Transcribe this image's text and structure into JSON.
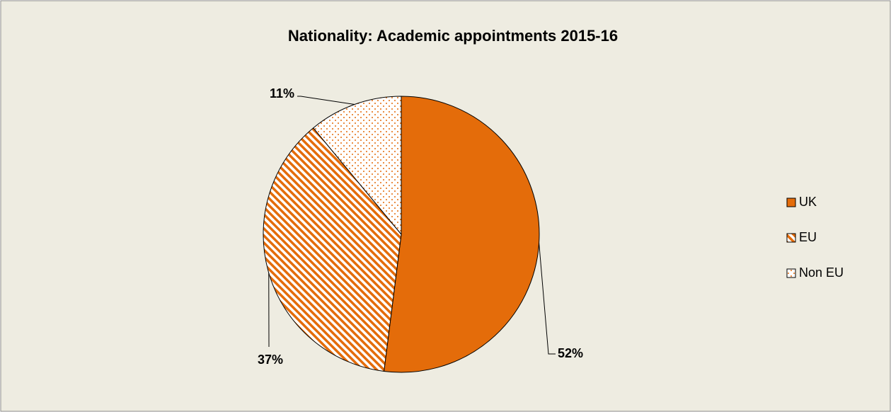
{
  "chart_data": {
    "type": "pie",
    "title": "Nationality: Academic appointments 2015-16",
    "categories": [
      "UK",
      "EU",
      "Non EU"
    ],
    "values": [
      52,
      37,
      11
    ],
    "value_labels": [
      "52%",
      "37%",
      "11%"
    ],
    "color": "#e46c0a",
    "fills": [
      "solid",
      "diagonal",
      "dots"
    ],
    "legend": "right"
  }
}
